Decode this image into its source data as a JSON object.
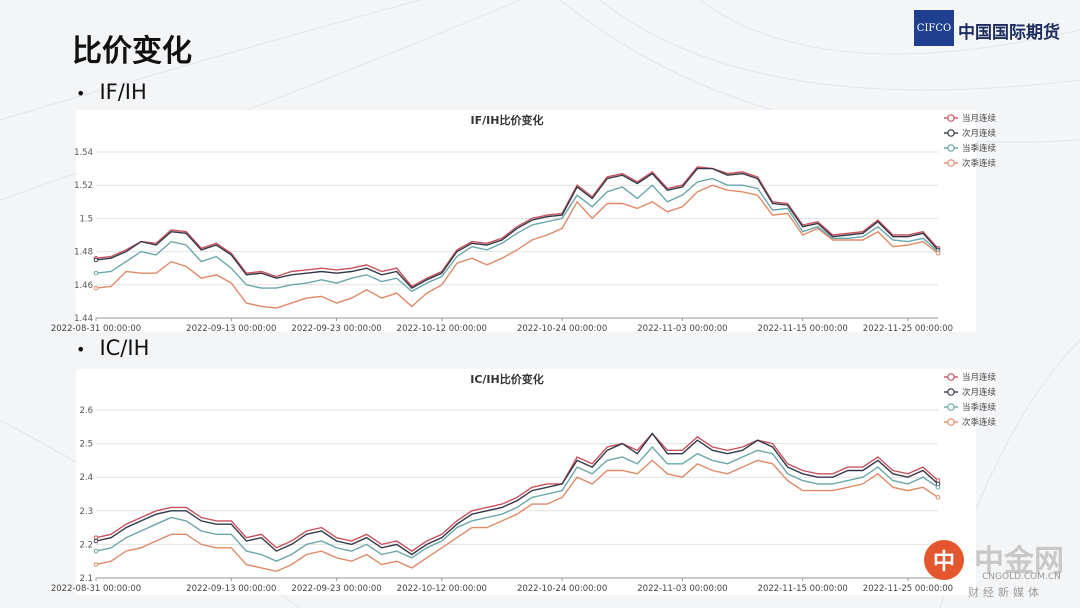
{
  "slide": {
    "title": "比价变化",
    "section1": "IF/IH",
    "section2": "IC/IH"
  },
  "brand": {
    "logo_text": "CIFCO",
    "name": "中国国际期货"
  },
  "watermark": {
    "mark": "中",
    "name": "中金网",
    "url": "CNGOLD.COM.CN",
    "tag": "财经新媒体"
  },
  "colors": {
    "当月连续": "#c8535e",
    "次月连续": "#34394a",
    "当季连续": "#6aa7ab",
    "次季连续": "#e08a66"
  },
  "chart_data": [
    {
      "type": "line",
      "title": "IF/IH比价变化",
      "ylim": [
        1.44,
        1.54
      ],
      "yticks": [
        1.44,
        1.46,
        1.48,
        1.5,
        1.52,
        1.54
      ],
      "ytick_labels": [
        "1.44",
        "1.46",
        "1.48",
        "1.5",
        "1.52",
        "1.54"
      ],
      "xtick_labels": [
        "2022-08-31 00:00:00",
        "2022-09-13 00:00:00",
        "2022-09-23 00:00:00",
        "2022-10-12 00:00:00",
        "2022-10-24 00:00:00",
        "2022-11-03 00:00:00",
        "2022-11-15 00:00:00",
        "2022-11-25 00:00:00"
      ],
      "xtick_index": [
        0,
        9,
        16,
        23,
        31,
        39,
        47,
        54
      ],
      "grid": true,
      "legend": "top-right",
      "series": [
        {
          "name": "当月连续",
          "values": [
            1.476,
            1.477,
            1.481,
            1.486,
            1.485,
            1.493,
            1.492,
            1.482,
            1.485,
            1.479,
            1.467,
            1.468,
            1.465,
            1.468,
            1.469,
            1.47,
            1.469,
            1.47,
            1.472,
            1.468,
            1.47,
            1.459,
            1.464,
            1.468,
            1.481,
            1.486,
            1.485,
            1.488,
            1.495,
            1.5,
            1.502,
            1.503,
            1.52,
            1.513,
            1.525,
            1.527,
            1.522,
            1.528,
            1.518,
            1.52,
            1.531,
            1.53,
            1.527,
            1.528,
            1.525,
            1.51,
            1.509,
            1.496,
            1.498,
            1.49,
            1.491,
            1.492,
            1.499,
            1.49,
            1.49,
            1.492,
            1.482
          ]
        },
        {
          "name": "次月连续",
          "values": [
            1.475,
            1.476,
            1.48,
            1.486,
            1.484,
            1.492,
            1.491,
            1.481,
            1.484,
            1.478,
            1.466,
            1.467,
            1.464,
            1.466,
            1.467,
            1.468,
            1.467,
            1.468,
            1.47,
            1.466,
            1.468,
            1.458,
            1.463,
            1.467,
            1.48,
            1.485,
            1.484,
            1.487,
            1.494,
            1.499,
            1.501,
            1.502,
            1.519,
            1.512,
            1.524,
            1.526,
            1.521,
            1.527,
            1.517,
            1.519,
            1.53,
            1.53,
            1.526,
            1.527,
            1.524,
            1.509,
            1.508,
            1.495,
            1.497,
            1.489,
            1.49,
            1.491,
            1.498,
            1.489,
            1.489,
            1.491,
            1.481
          ]
        },
        {
          "name": "当季连续",
          "values": [
            1.467,
            1.468,
            1.474,
            1.48,
            1.478,
            1.486,
            1.484,
            1.474,
            1.477,
            1.47,
            1.46,
            1.458,
            1.458,
            1.46,
            1.461,
            1.463,
            1.461,
            1.464,
            1.466,
            1.462,
            1.464,
            1.456,
            1.461,
            1.465,
            1.477,
            1.483,
            1.481,
            1.485,
            1.491,
            1.496,
            1.498,
            1.5,
            1.514,
            1.507,
            1.516,
            1.519,
            1.512,
            1.52,
            1.51,
            1.514,
            1.522,
            1.524,
            1.52,
            1.52,
            1.518,
            1.505,
            1.506,
            1.492,
            1.495,
            1.488,
            1.488,
            1.489,
            1.495,
            1.487,
            1.486,
            1.488,
            1.48
          ]
        },
        {
          "name": "次季连续",
          "values": [
            1.458,
            1.459,
            1.468,
            1.467,
            1.467,
            1.474,
            1.471,
            1.464,
            1.466,
            1.461,
            1.449,
            1.447,
            1.446,
            1.449,
            1.452,
            1.453,
            1.449,
            1.452,
            1.457,
            1.452,
            1.455,
            1.447,
            1.455,
            1.46,
            1.473,
            1.476,
            1.472,
            1.476,
            1.481,
            1.487,
            1.49,
            1.494,
            1.51,
            1.5,
            1.509,
            1.509,
            1.506,
            1.51,
            1.504,
            1.507,
            1.516,
            1.52,
            1.517,
            1.516,
            1.514,
            1.502,
            1.503,
            1.49,
            1.494,
            1.487,
            1.487,
            1.487,
            1.492,
            1.483,
            1.484,
            1.486,
            1.479
          ]
        }
      ]
    },
    {
      "type": "line",
      "title": "IC/IH比价变化",
      "ylim": [
        2.1,
        2.6
      ],
      "yticks": [
        2.1,
        2.2,
        2.3,
        2.4,
        2.5,
        2.6
      ],
      "ytick_labels": [
        "2.1",
        "2.2",
        "2.3",
        "2.4",
        "2.5",
        "2.6"
      ],
      "xtick_labels": [
        "2022-08-31 00:00:00",
        "2022-09-13 00:00:00",
        "2022-09-23 00:00:00",
        "2022-10-12 00:00:00",
        "2022-10-24 00:00:00",
        "2022-11-03 00:00:00",
        "2022-11-15 00:00:00",
        "2022-11-25 00:00:00"
      ],
      "xtick_index": [
        0,
        9,
        16,
        23,
        31,
        39,
        47,
        54
      ],
      "grid": true,
      "legend": "top-right",
      "series": [
        {
          "name": "当月连续",
          "values": [
            2.22,
            2.23,
            2.26,
            2.28,
            2.3,
            2.31,
            2.31,
            2.28,
            2.27,
            2.27,
            2.22,
            2.23,
            2.19,
            2.21,
            2.24,
            2.25,
            2.22,
            2.21,
            2.23,
            2.2,
            2.21,
            2.18,
            2.21,
            2.23,
            2.27,
            2.3,
            2.31,
            2.32,
            2.34,
            2.37,
            2.38,
            2.38,
            2.46,
            2.44,
            2.49,
            2.5,
            2.48,
            2.53,
            2.48,
            2.48,
            2.52,
            2.49,
            2.48,
            2.49,
            2.51,
            2.5,
            2.44,
            2.42,
            2.41,
            2.41,
            2.43,
            2.43,
            2.46,
            2.42,
            2.41,
            2.43,
            2.39
          ]
        },
        {
          "name": "次月连续",
          "values": [
            2.21,
            2.22,
            2.25,
            2.27,
            2.29,
            2.3,
            2.3,
            2.27,
            2.26,
            2.26,
            2.21,
            2.22,
            2.18,
            2.2,
            2.23,
            2.24,
            2.21,
            2.2,
            2.22,
            2.19,
            2.2,
            2.17,
            2.2,
            2.22,
            2.26,
            2.29,
            2.3,
            2.31,
            2.33,
            2.36,
            2.37,
            2.38,
            2.45,
            2.43,
            2.48,
            2.5,
            2.47,
            2.53,
            2.47,
            2.47,
            2.51,
            2.48,
            2.47,
            2.48,
            2.51,
            2.49,
            2.43,
            2.41,
            2.4,
            2.4,
            2.42,
            2.42,
            2.45,
            2.41,
            2.4,
            2.42,
            2.38
          ]
        },
        {
          "name": "当季连续",
          "values": [
            2.18,
            2.19,
            2.22,
            2.24,
            2.26,
            2.28,
            2.27,
            2.24,
            2.23,
            2.23,
            2.18,
            2.17,
            2.15,
            2.17,
            2.2,
            2.21,
            2.19,
            2.18,
            2.2,
            2.17,
            2.18,
            2.16,
            2.19,
            2.21,
            2.25,
            2.27,
            2.28,
            2.29,
            2.31,
            2.34,
            2.35,
            2.36,
            2.43,
            2.41,
            2.45,
            2.46,
            2.44,
            2.49,
            2.44,
            2.44,
            2.47,
            2.45,
            2.44,
            2.46,
            2.48,
            2.47,
            2.41,
            2.39,
            2.38,
            2.38,
            2.39,
            2.4,
            2.43,
            2.39,
            2.38,
            2.4,
            2.37
          ]
        },
        {
          "name": "次季连续",
          "values": [
            2.14,
            2.15,
            2.18,
            2.19,
            2.21,
            2.23,
            2.23,
            2.2,
            2.19,
            2.19,
            2.14,
            2.13,
            2.12,
            2.14,
            2.17,
            2.18,
            2.16,
            2.15,
            2.17,
            2.14,
            2.15,
            2.13,
            2.16,
            2.19,
            2.22,
            2.25,
            2.25,
            2.27,
            2.29,
            2.32,
            2.32,
            2.34,
            2.4,
            2.38,
            2.42,
            2.42,
            2.41,
            2.45,
            2.41,
            2.4,
            2.44,
            2.42,
            2.41,
            2.43,
            2.45,
            2.44,
            2.39,
            2.36,
            2.36,
            2.36,
            2.37,
            2.38,
            2.41,
            2.37,
            2.36,
            2.37,
            2.34
          ]
        }
      ]
    }
  ]
}
